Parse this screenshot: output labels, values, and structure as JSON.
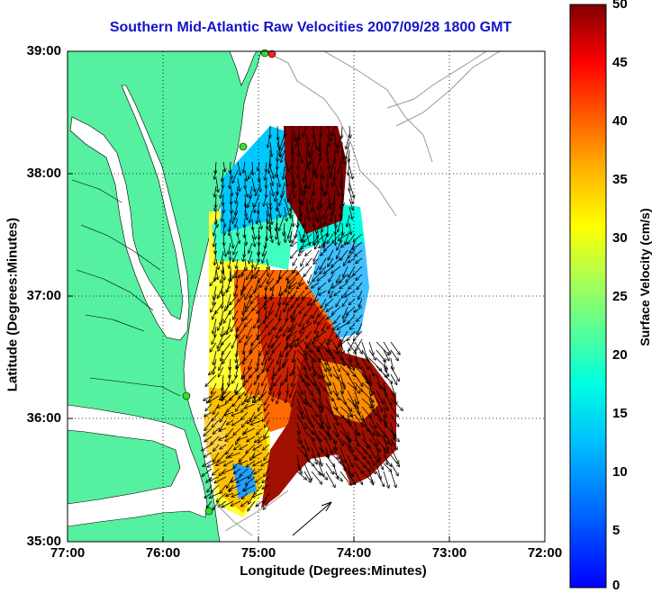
{
  "title": "Southern Mid-Atlantic Raw Velocities 2007/09/28 1800 GMT",
  "axes": {
    "xlabel": "Longitude (Degrees:Minutes)",
    "ylabel": "Latitude (Degrees:Minutes)",
    "x_ticks": [
      "77:00",
      "76:00",
      "75:00",
      "74:00",
      "73:00",
      "72:00"
    ],
    "y_ticks": [
      "39:00",
      "38:00",
      "37:00",
      "36:00",
      "35:00"
    ],
    "grid": "dotted"
  },
  "colorbar": {
    "label": "Surface Velocity (cm/s)",
    "ticks": [
      "50",
      "45",
      "40",
      "35",
      "30",
      "25",
      "20",
      "15",
      "10",
      "5",
      "0"
    ],
    "range": [
      0,
      50
    ],
    "colormap": "jet"
  },
  "colors": {
    "land": "#55f0a0",
    "title": "#1414c8",
    "site_marker": "#33dd33",
    "site_marker_highlight": "#ff2020",
    "bathymetry": "#999999",
    "arrow": "#000000"
  },
  "extent": {
    "lon": [
      -77,
      -72
    ],
    "lat": [
      35,
      39
    ]
  }
}
